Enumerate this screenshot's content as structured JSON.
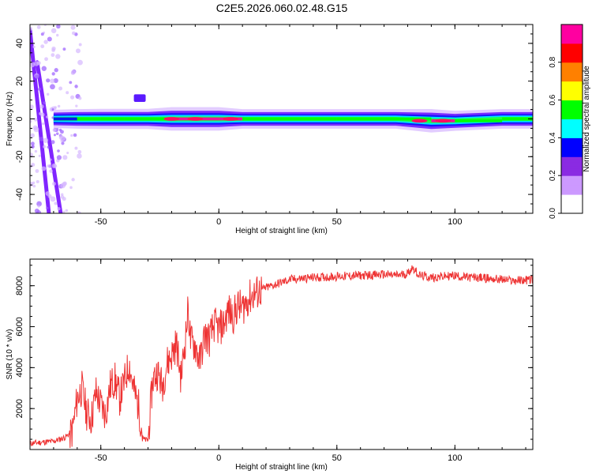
{
  "title": "C2E5.2026.060.02.48.G15",
  "chart_data": [
    {
      "type": "heatmap",
      "xlabel": "Height of straight line (km)",
      "ylabel": "Frequency (Hz)",
      "xlim": [
        -80,
        133
      ],
      "ylim": [
        -50,
        50
      ],
      "x_ticks": [
        -50,
        0,
        50,
        100
      ],
      "y_ticks": [
        -40,
        -20,
        0,
        20,
        40
      ],
      "colorbar": {
        "label": "Normalized spectral amplitude",
        "range": [
          0,
          1
        ],
        "ticks": [
          "0.0",
          "0.2",
          "0.4",
          "0.6",
          "0.8"
        ],
        "tick_values": [
          0,
          0.2,
          0.4,
          0.6,
          0.8
        ],
        "colors": [
          "#ffffff",
          "#cc99ff",
          "#8a2be2",
          "#0000ff",
          "#00ffff",
          "#00ff00",
          "#ffff00",
          "#ff8000",
          "#ff0000",
          "#ff00a0"
        ]
      },
      "ridge": [
        {
          "x": -70,
          "freq": 0,
          "amp": 0.35
        },
        {
          "x": -60,
          "freq": 0,
          "amp": 0.5
        },
        {
          "x": -50,
          "freq": 0,
          "amp": 0.55
        },
        {
          "x": -40,
          "freq": 0,
          "amp": 0.55
        },
        {
          "x": -30,
          "freq": 0,
          "amp": 0.55
        },
        {
          "x": -20,
          "freq": 0,
          "amp": 0.9
        },
        {
          "x": -10,
          "freq": 0,
          "amp": 0.9
        },
        {
          "x": 0,
          "freq": 0,
          "amp": 0.9
        },
        {
          "x": 10,
          "freq": 0,
          "amp": 0.5
        },
        {
          "x": 25,
          "freq": 0,
          "amp": 0.5
        },
        {
          "x": 50,
          "freq": 0,
          "amp": 0.5
        },
        {
          "x": 75,
          "freq": 0,
          "amp": 0.5
        },
        {
          "x": 90,
          "freq": -1,
          "amp": 0.9
        },
        {
          "x": 100,
          "freq": -1,
          "amp": 0.55
        },
        {
          "x": 120,
          "freq": 0,
          "amp": 0.5
        },
        {
          "x": 133,
          "freq": 0,
          "amp": 0.5
        }
      ],
      "hot_spots": [
        {
          "x": -20,
          "freq": 0
        },
        {
          "x": -10,
          "freq": 0
        },
        {
          "x": 5,
          "freq": 0
        },
        {
          "x": 85,
          "freq": -1
        },
        {
          "x": 95,
          "freq": -1
        }
      ],
      "streaks": [
        {
          "x": [
            -80,
            -72
          ],
          "freq": [
            47,
            -50
          ]
        },
        {
          "x": [
            -77,
            -67
          ],
          "freq": [
            30,
            -50
          ]
        }
      ]
    },
    {
      "type": "line",
      "xlabel": "Height of straight line (km)",
      "ylabel": "SNR (10 * v/v)",
      "xlim": [
        -80,
        133
      ],
      "ylim": [
        0,
        9300
      ],
      "x_ticks": [
        -50,
        0,
        50,
        100
      ],
      "y_ticks": [
        2000,
        4000,
        6000,
        8000
      ],
      "color": "#ee3333",
      "series": [
        {
          "name": "SNR",
          "x": [
            -80,
            -75,
            -70,
            -65,
            -62,
            -60,
            -58,
            -56,
            -54,
            -52,
            -50,
            -48,
            -46,
            -44,
            -42,
            -40,
            -38,
            -36,
            -34,
            -32,
            -30,
            -28,
            -26,
            -24,
            -22,
            -20,
            -18,
            -16,
            -14,
            -13,
            -12,
            -10,
            -8,
            -6,
            -4,
            -2,
            0,
            2,
            4,
            6,
            8,
            10,
            12,
            15,
            20,
            25,
            30,
            35,
            40,
            50,
            60,
            70,
            75,
            80,
            82,
            85,
            90,
            95,
            100,
            105,
            110,
            115,
            120,
            125,
            133
          ],
          "y": [
            300,
            350,
            400,
            600,
            900,
            2500,
            3000,
            1800,
            1500,
            2800,
            2200,
            1700,
            3100,
            3400,
            2500,
            3300,
            4200,
            2900,
            2100,
            500,
            450,
            3400,
            3800,
            3100,
            4200,
            4600,
            5200,
            3500,
            5600,
            6900,
            5300,
            5100,
            4300,
            5600,
            5400,
            6100,
            5900,
            6100,
            6800,
            6500,
            7000,
            6900,
            7300,
            7600,
            7900,
            8100,
            8300,
            8350,
            8400,
            8450,
            8500,
            8550,
            8500,
            8600,
            8900,
            8500,
            8400,
            8450,
            8500,
            8400,
            8400,
            8350,
            8300,
            8250,
            8300
          ]
        }
      ]
    }
  ]
}
